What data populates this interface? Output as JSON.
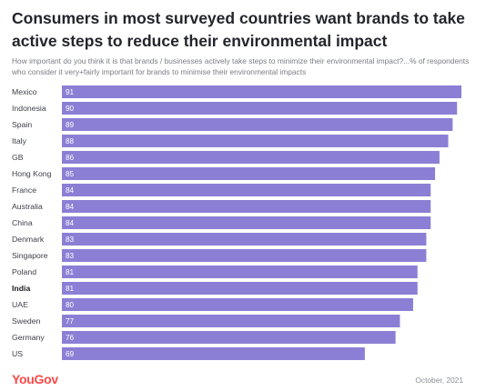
{
  "title": "Consumers in most surveyed countries want brands to take active steps to reduce their environmental impact",
  "subtitle": "How important do you think it is that brands / businesses actively take steps to minimize their environmental impact?...% of respondents who consider it very+fairly important for brands to minimise their environmental impacts",
  "brand": "YouGov",
  "date": "October, 2021",
  "colors": {
    "bar": "#8b7fd5",
    "brand": "#fb4848"
  },
  "chart_data": {
    "type": "bar",
    "orientation": "horizontal",
    "title": "Consumers in most surveyed countries want brands to take active steps to reduce their environmental impact",
    "subtitle": "How important do you think it is that brands / businesses actively take steps to minimize their environmental impact?...% of respondents who consider it very+fairly important for brands to minimise their environmental impacts",
    "xlabel": "",
    "ylabel": "",
    "xlim": [
      0,
      91
    ],
    "categories": [
      "Mexico",
      "Indonesia",
      "Spain",
      "Italy",
      "GB",
      "Hong Kong",
      "France",
      "Australia",
      "China",
      "Denmark",
      "Singapore",
      "Poland",
      "India",
      "UAE",
      "Sweden",
      "Germany",
      "US"
    ],
    "values": [
      91,
      90,
      89,
      88,
      86,
      85,
      84,
      84,
      84,
      83,
      83,
      81,
      81,
      80,
      77,
      76,
      69
    ],
    "highlight": "India",
    "grid": false,
    "legend": "none"
  }
}
